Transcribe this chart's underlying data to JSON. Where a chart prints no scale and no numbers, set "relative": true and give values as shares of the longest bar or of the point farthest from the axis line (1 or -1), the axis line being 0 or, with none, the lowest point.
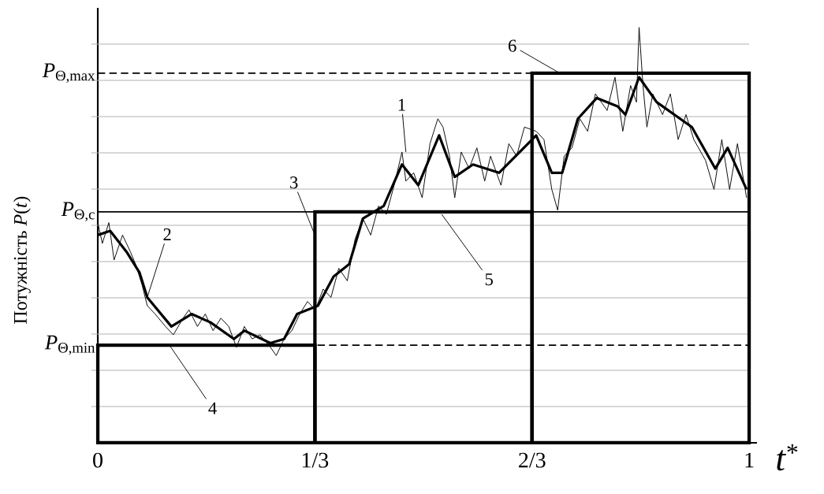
{
  "chart_data": {
    "type": "line",
    "relative": true,
    "xlabel": "*t*$^{*}$",
    "ylabel": "Потужність *P*(*t*)",
    "xlim": [
      0,
      1.012
    ],
    "xticks": [
      {
        "value": 0,
        "label": "0"
      },
      {
        "value": 0.3333,
        "label": "1/3"
      },
      {
        "value": 0.6667,
        "label": "2/3"
      },
      {
        "value": 1,
        "label": "1"
      }
    ],
    "grid": "y",
    "marker": "none",
    "line_style": "solid",
    "series": [
      {
        "color": "#000000",
        "x": [
          0,
          0.007,
          0.017,
          0.025,
          0.038,
          0.05,
          0.058,
          0.068,
          0.076,
          0.088,
          0.104,
          0.116,
          0.131,
          0.14,
          0.153,
          0.165,
          0.177,
          0.189,
          0.201,
          0.213,
          0.225,
          0.237,
          0.249,
          0.265,
          0.274,
          0.286,
          0.298,
          0.31,
          0.322,
          0.334,
          0.346,
          0.358,
          0.37,
          0.383,
          0.395,
          0.407,
          0.419,
          0.431,
          0.443,
          0.455,
          0.467,
          0.473,
          0.485,
          0.498,
          0.51,
          0.522,
          0.53,
          0.54,
          0.548,
          0.558,
          0.57,
          0.582,
          0.594,
          0.603,
          0.619,
          0.631,
          0.643,
          0.655,
          0.673,
          0.685,
          0.697,
          0.706,
          0.716,
          0.728,
          0.74,
          0.752,
          0.764,
          0.782,
          0.794,
          0.806,
          0.818,
          0.827,
          0.831,
          0.837,
          0.843,
          0.852,
          0.867,
          0.879,
          0.891,
          0.903,
          0.915,
          0.933,
          0.946,
          0.958,
          0.97,
          0.982,
          0.996
        ],
        "values": [
          0.53,
          0.48,
          0.53,
          0.44,
          0.5,
          0.46,
          0.43,
          0.38,
          0.33,
          0.31,
          0.28,
          0.26,
          0.3,
          0.32,
          0.28,
          0.31,
          0.27,
          0.3,
          0.28,
          0.23,
          0.28,
          0.25,
          0.26,
          0.23,
          0.21,
          0.25,
          0.27,
          0.31,
          0.34,
          0.32,
          0.37,
          0.35,
          0.42,
          0.39,
          0.49,
          0.54,
          0.5,
          0.57,
          0.55,
          0.62,
          0.7,
          0.63,
          0.65,
          0.59,
          0.72,
          0.78,
          0.76,
          0.69,
          0.59,
          0.7,
          0.66,
          0.71,
          0.63,
          0.69,
          0.62,
          0.72,
          0.69,
          0.76,
          0.75,
          0.73,
          0.61,
          0.56,
          0.69,
          0.71,
          0.78,
          0.75,
          0.84,
          0.8,
          0.88,
          0.75,
          0.86,
          0.82,
          1.0,
          0.86,
          0.76,
          0.84,
          0.79,
          0.84,
          0.73,
          0.79,
          0.73,
          0.68,
          0.61,
          0.73,
          0.61,
          0.72,
          0.59
        ]
      },
      {
        "type": "line",
        "color": "#000000",
        "x": [
          0,
          0.019,
          0.044,
          0.064,
          0.076,
          0.113,
          0.144,
          0.173,
          0.209,
          0.225,
          0.265,
          0.286,
          0.306,
          0.338,
          0.362,
          0.386,
          0.407,
          0.439,
          0.467,
          0.492,
          0.524,
          0.548,
          0.576,
          0.616,
          0.673,
          0.697,
          0.713,
          0.737,
          0.766,
          0.798,
          0.81,
          0.831,
          0.858,
          0.912,
          0.948,
          0.967,
          0.996
        ],
        "values": [
          0.5,
          0.51,
          0.46,
          0.41,
          0.35,
          0.28,
          0.31,
          0.29,
          0.25,
          0.27,
          0.24,
          0.25,
          0.31,
          0.33,
          0.4,
          0.43,
          0.54,
          0.57,
          0.67,
          0.62,
          0.74,
          0.64,
          0.67,
          0.65,
          0.74,
          0.65,
          0.65,
          0.78,
          0.83,
          0.81,
          0.79,
          0.88,
          0.82,
          0.76,
          0.66,
          0.71,
          0.61
        ]
      },
      {
        "type": "bar",
        "color": "#000000",
        "x": [
          0.1667,
          0.5,
          0.8333
        ],
        "values": [
          0.235,
          0.556,
          0.89
        ]
      }
    ],
    "ref_lines": [
      {
        "axis": "y",
        "value": 0.89,
        "label": "*P*$_{Θ,max}$",
        "line_style": "dashed"
      },
      {
        "axis": "y",
        "value": 0.556,
        "label": "*P*$_{Θ,c}$",
        "line_style": "solid"
      },
      {
        "axis": "y",
        "value": 0.235,
        "label": "*P*$_{Θ,min}$",
        "line_style": "dashed"
      }
    ],
    "annotations": [
      {
        "text": "1",
        "x": 0.473,
        "y": 0.7
      },
      {
        "text": "2",
        "x": 0.076,
        "y": 0.35
      },
      {
        "text": "3",
        "x": 0.3333,
        "y": 0.5
      },
      {
        "text": "4",
        "x": 0.11,
        "y": 0.235
      },
      {
        "text": "5",
        "x": 0.528,
        "y": 0.55
      },
      {
        "text": "6",
        "x": 0.709,
        "y": 0.89
      }
    ]
  }
}
